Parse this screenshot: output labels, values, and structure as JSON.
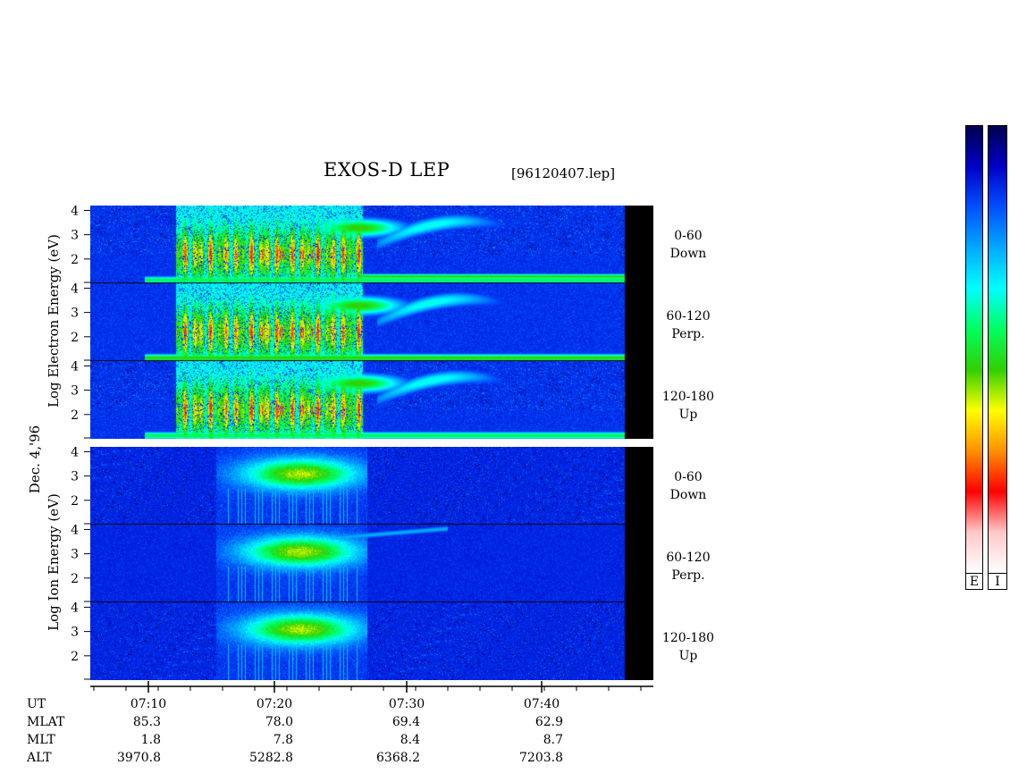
{
  "header": {
    "title": "EXOS-D LEP",
    "file": "[96120407.lep]"
  },
  "date_label": "Dec. 4,'96",
  "electron_ylabel": "Log  Electron  Energy (eV)",
  "ion_ylabel": "Log   Ion  Energy (eV)",
  "colorbar": {
    "labels": [
      "E",
      "I"
    ]
  },
  "ephemeris": {
    "rows": [
      {
        "name": "UT",
        "values": [
          "07:10",
          "07:20",
          "07:30",
          "07:40"
        ]
      },
      {
        "name": "MLAT",
        "values": [
          "85.3",
          "78.0",
          "69.4",
          "62.9"
        ]
      },
      {
        "name": "MLT",
        "values": [
          "1.8",
          "7.8",
          "8.4",
          "8.7"
        ]
      },
      {
        "name": "ALT",
        "values": [
          "3970.8",
          "5282.8",
          "6368.2",
          "7203.8"
        ]
      }
    ]
  },
  "chart_data": {
    "type": "heatmap",
    "title": "EXOS-D LEP",
    "xlabel": "UT",
    "x_ticks": [
      "07:10",
      "07:20",
      "07:30",
      "07:40"
    ],
    "x_range": [
      "07:06",
      "07:47"
    ],
    "ylim": [
      1,
      4.2
    ],
    "y_ticks": [
      2,
      3,
      4
    ],
    "panels": [
      {
        "species": "Electron",
        "pitch": "0-60",
        "dir": "Down"
      },
      {
        "species": "Electron",
        "pitch": "60-120",
        "dir": "Perp."
      },
      {
        "species": "Electron",
        "pitch": "120-180",
        "dir": "Up"
      },
      {
        "species": "Ion",
        "pitch": "0-60",
        "dir": "Down"
      },
      {
        "species": "Ion",
        "pitch": "60-120",
        "dir": "Perp."
      },
      {
        "species": "Ion",
        "pitch": "120-180",
        "dir": "Up"
      }
    ],
    "colorscale": [
      "#000050",
      "#0000c8",
      "#0050ff",
      "#00aaff",
      "#00ffff",
      "#00ff60",
      "#30d000",
      "#ffff00",
      "#ff9000",
      "#ff0000",
      "#ffc8c8",
      "#ffffff"
    ]
  }
}
